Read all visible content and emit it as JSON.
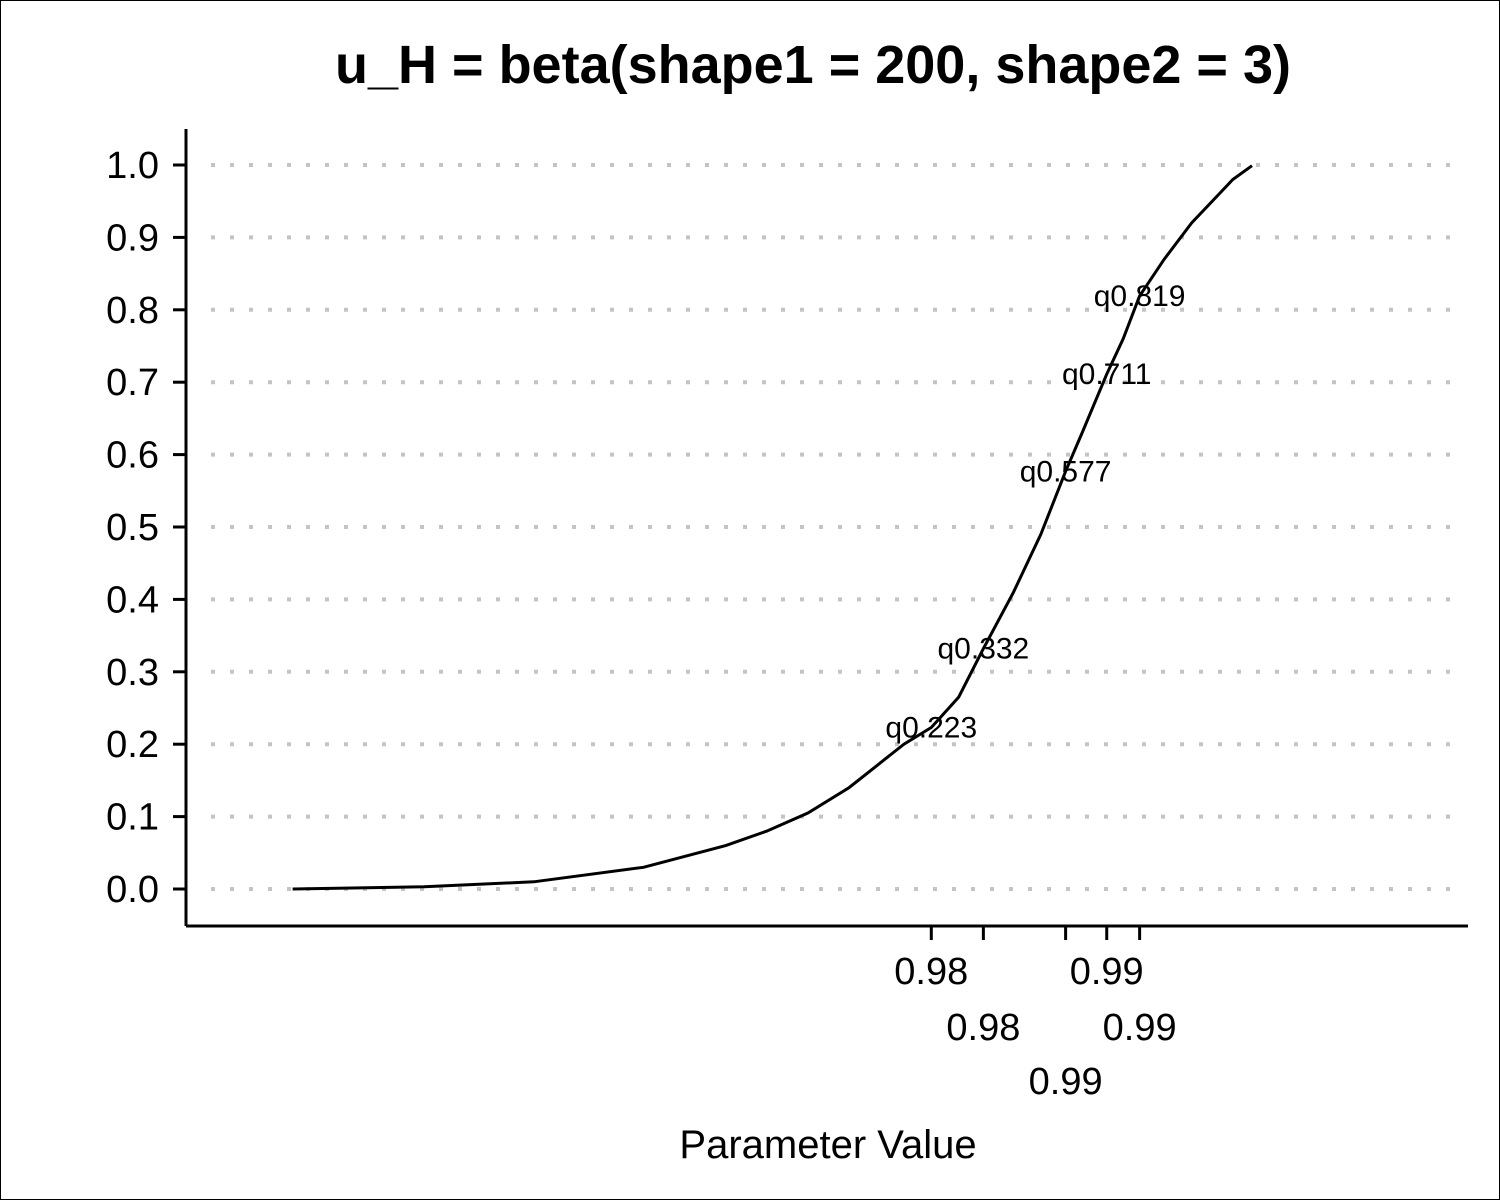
{
  "chart_data": {
    "type": "line",
    "title": "u_H = beta(shape1 = 200, shape2 = 3)",
    "xlabel": "Parameter Value",
    "ylabel": "",
    "xlim": [
      0.9575,
      1.0
    ],
    "ylim": [
      0.0,
      1.0
    ],
    "y_ticks": [
      "0.0",
      "0.1",
      "0.2",
      "0.3",
      "0.4",
      "0.5",
      "0.6",
      "0.7",
      "0.8",
      "0.9",
      "1.0"
    ],
    "x_ticks": [
      {
        "value": 0.9825,
        "label": "0.98"
      },
      {
        "value": 0.9844,
        "label": "0.98"
      },
      {
        "value": 0.9874,
        "label": "0.99"
      },
      {
        "value": 0.9889,
        "label": "0.99"
      },
      {
        "value": 0.9901,
        "label": "0.99"
      }
    ],
    "grid": "horizontal-dotted",
    "legend": "none",
    "series": [
      {
        "x": [
          0.9592,
          0.964,
          0.968,
          0.972,
          0.975,
          0.9765,
          0.978,
          0.9795,
          0.9805,
          0.9815,
          0.9825,
          0.9835,
          0.9844,
          0.9855,
          0.9865,
          0.9874,
          0.988,
          0.9889,
          0.9895,
          0.9901,
          0.991,
          0.992,
          0.993,
          0.9935,
          0.9942
        ],
        "values": [
          0.0,
          0.003,
          0.01,
          0.03,
          0.06,
          0.08,
          0.105,
          0.14,
          0.17,
          0.2,
          0.223,
          0.265,
          0.332,
          0.41,
          0.49,
          0.577,
          0.63,
          0.711,
          0.76,
          0.819,
          0.87,
          0.92,
          0.96,
          0.98,
          0.999
        ]
      }
    ],
    "quantile_labels": [
      {
        "text": "q0.223",
        "x": 0.9825,
        "y": 0.223
      },
      {
        "text": "q0.332",
        "x": 0.9844,
        "y": 0.332
      },
      {
        "text": "q0.577",
        "x": 0.9874,
        "y": 0.577
      },
      {
        "text": "q0.711",
        "x": 0.9889,
        "y": 0.711
      },
      {
        "text": "q0.819",
        "x": 0.9901,
        "y": 0.819
      }
    ]
  }
}
